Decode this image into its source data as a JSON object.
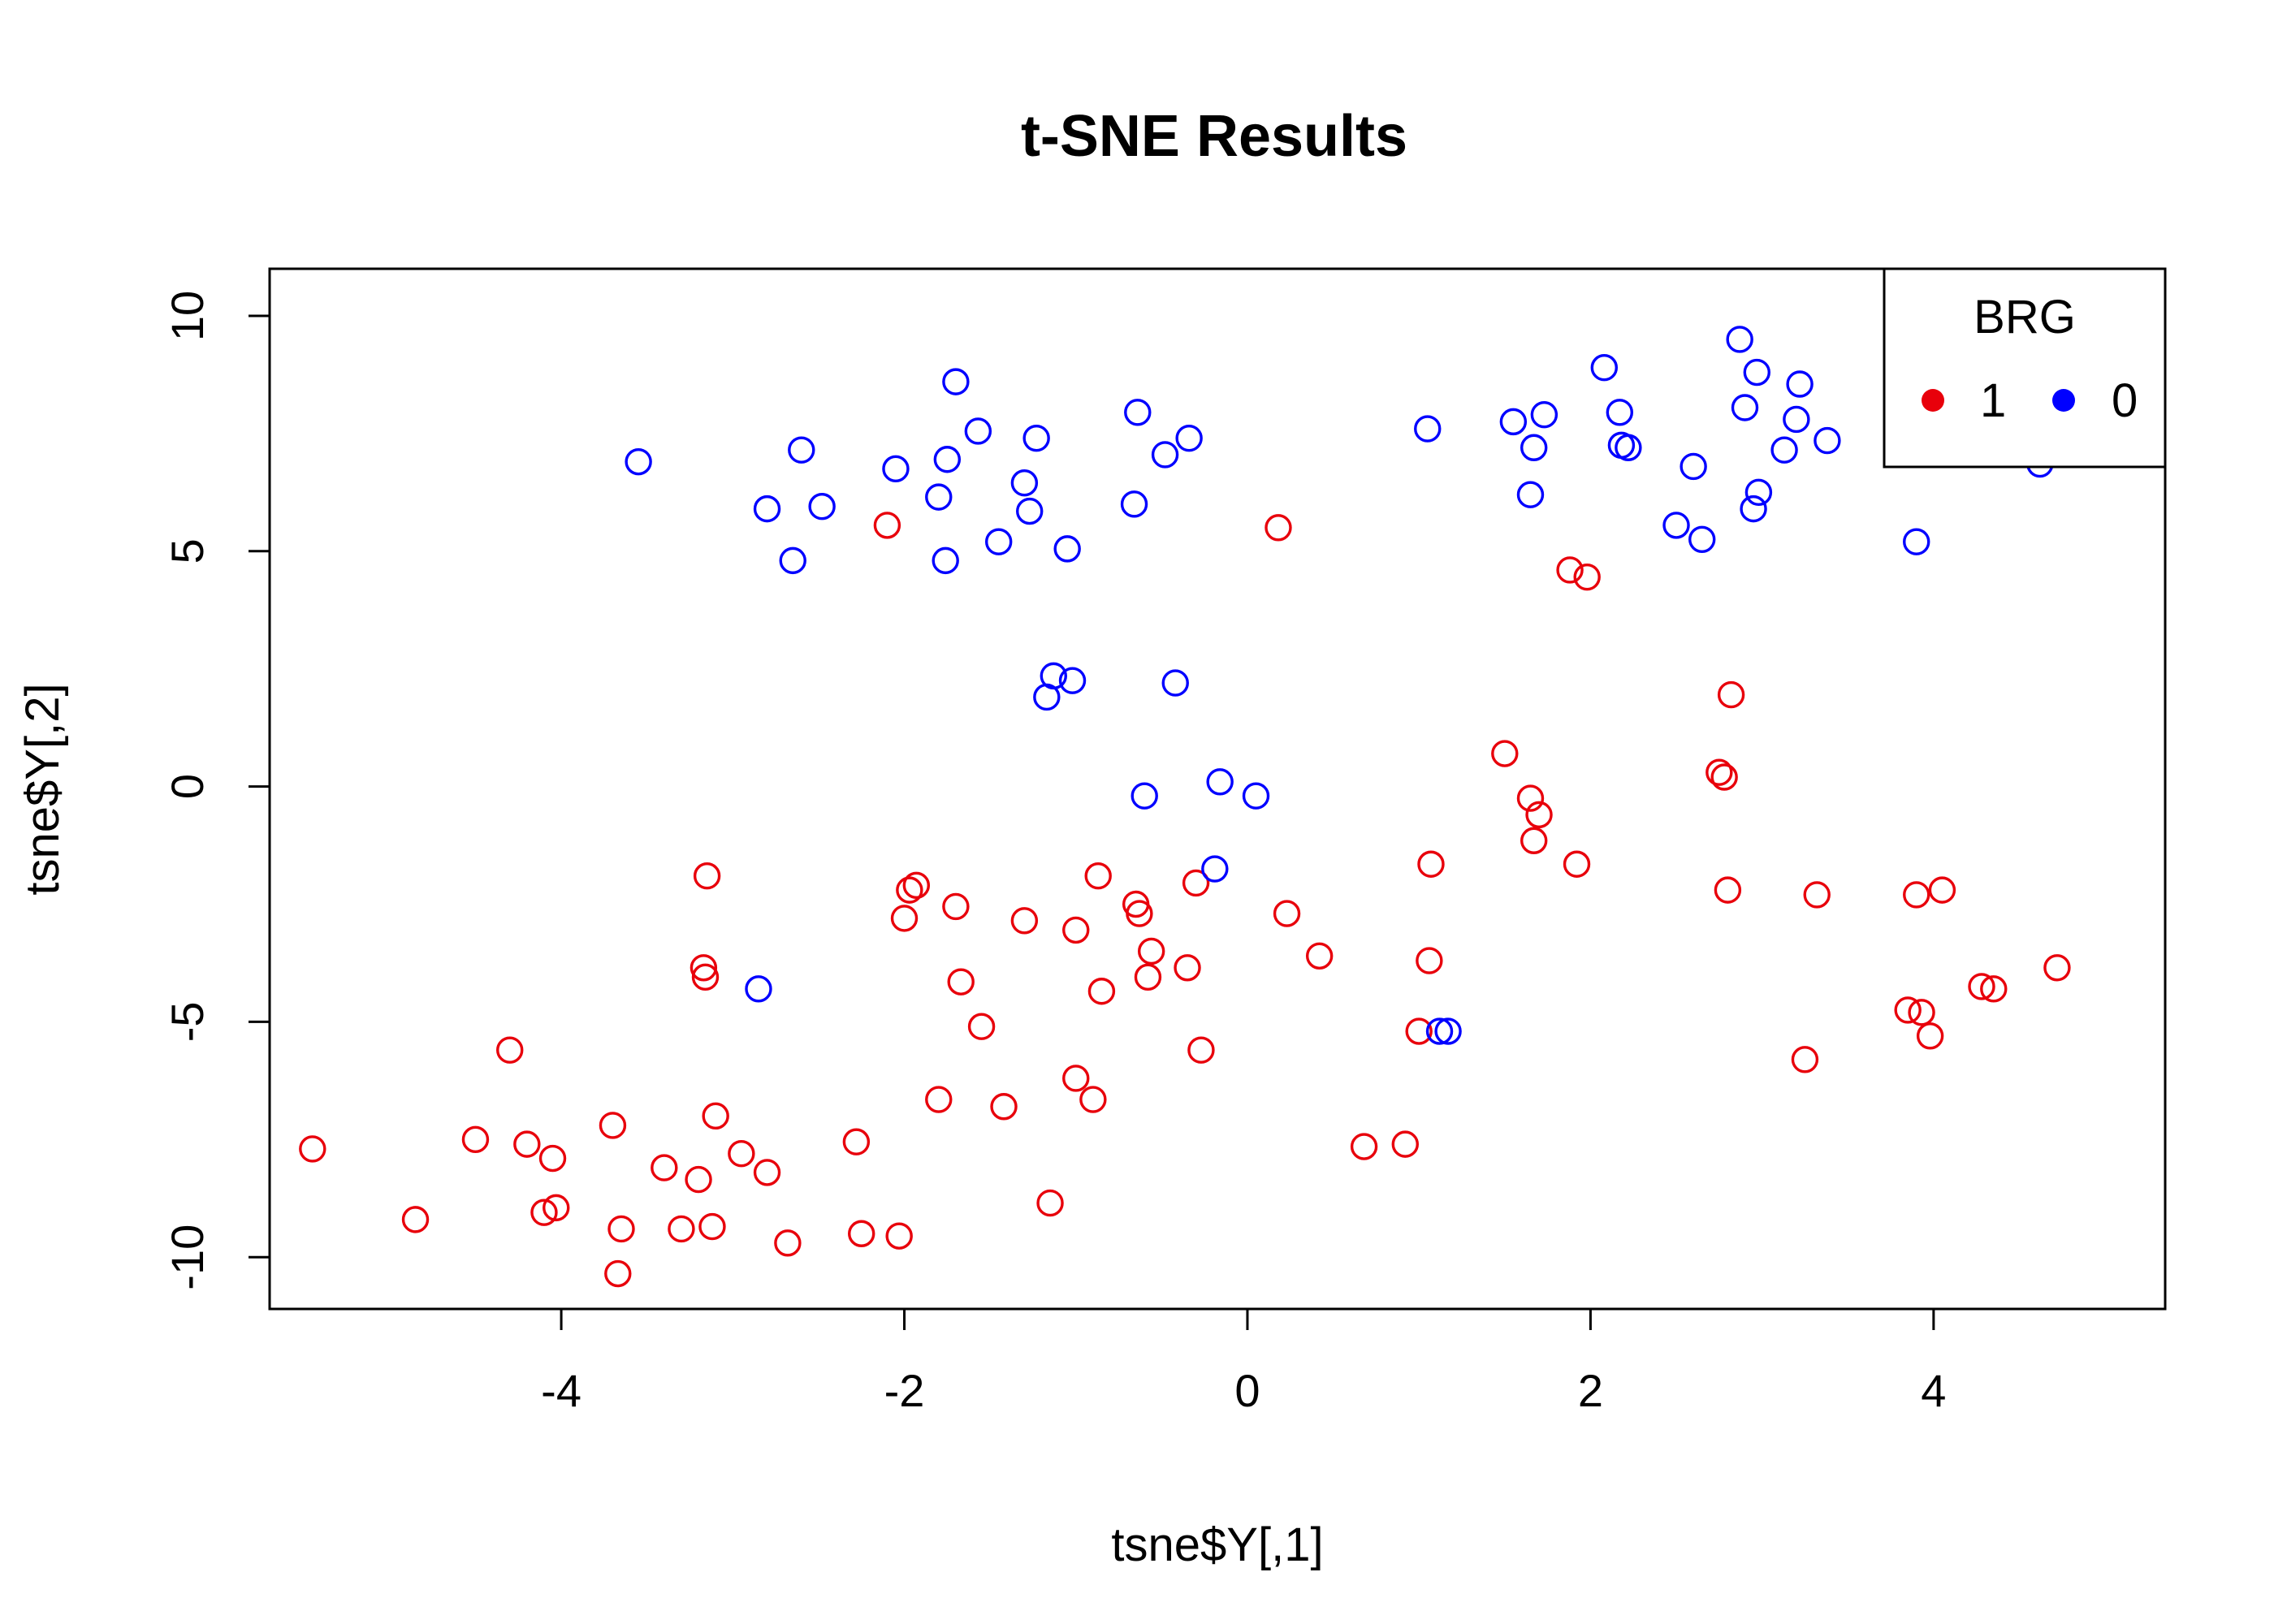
{
  "chart_data": {
    "type": "scatter",
    "title": "t-SNE Results",
    "xlabel": "tsne$Y[,1]",
    "ylabel": "tsne$Y[,2]",
    "xlim": [
      -5.7,
      5.35
    ],
    "ylim": [
      -11.1,
      11.0
    ],
    "x_ticks": [
      -4,
      -2,
      0,
      2,
      4
    ],
    "y_ticks": [
      -10,
      -5,
      0,
      5,
      10
    ],
    "x_tick_labels": [
      "-4",
      "-2",
      "0",
      "2",
      "4"
    ],
    "y_tick_labels": [
      "-10",
      "-5",
      "0",
      "5",
      "10"
    ],
    "grid": false,
    "legend": {
      "title": "BRG",
      "position": "top-right",
      "entries": [
        {
          "label": "1",
          "color": "#e8000b"
        },
        {
          "label": "0",
          "color": "#0000ff"
        }
      ]
    },
    "series": [
      {
        "name": "1",
        "color": "#e8000b",
        "marker": "open-circle",
        "points": [
          [
            -5.45,
            -7.7
          ],
          [
            -4.85,
            -9.2
          ],
          [
            -4.5,
            -7.5
          ],
          [
            -4.3,
            -5.6
          ],
          [
            -4.2,
            -7.6
          ],
          [
            -4.1,
            -9.05
          ],
          [
            -4.05,
            -7.9
          ],
          [
            -4.03,
            -8.95
          ],
          [
            -3.7,
            -7.2
          ],
          [
            -3.67,
            -10.35
          ],
          [
            -3.65,
            -9.4
          ],
          [
            -3.4,
            -8.1
          ],
          [
            -3.3,
            -9.4
          ],
          [
            -3.2,
            -8.35
          ],
          [
            -3.17,
            -3.85
          ],
          [
            -3.16,
            -4.05
          ],
          [
            -3.15,
            -1.9
          ],
          [
            -3.12,
            -9.35
          ],
          [
            -3.1,
            -7.0
          ],
          [
            -2.95,
            -7.8
          ],
          [
            -2.8,
            -8.2
          ],
          [
            -2.68,
            -9.7
          ],
          [
            -2.1,
            5.55
          ],
          [
            -2.28,
            -7.55
          ],
          [
            -2.25,
            -9.5
          ],
          [
            -2.03,
            -9.55
          ],
          [
            -2.0,
            -2.8
          ],
          [
            -1.97,
            -2.2
          ],
          [
            -1.93,
            -2.1
          ],
          [
            -1.8,
            -6.65
          ],
          [
            -1.7,
            -2.55
          ],
          [
            -1.67,
            -4.15
          ],
          [
            -1.55,
            -5.1
          ],
          [
            -1.42,
            -6.8
          ],
          [
            -1.3,
            -2.85
          ],
          [
            -1.0,
            -3.05
          ],
          [
            -1.0,
            -6.2
          ],
          [
            -1.15,
            -8.85
          ],
          [
            -0.9,
            -6.65
          ],
          [
            -0.87,
            -1.9
          ],
          [
            -0.85,
            -4.35
          ],
          [
            -0.65,
            -2.5
          ],
          [
            -0.63,
            -2.7
          ],
          [
            -0.58,
            -4.05
          ],
          [
            -0.56,
            -3.5
          ],
          [
            -0.35,
            -3.85
          ],
          [
            -0.3,
            -2.05
          ],
          [
            -0.27,
            -5.6
          ],
          [
            0.18,
            5.5
          ],
          [
            0.23,
            -2.7
          ],
          [
            0.42,
            -3.6
          ],
          [
            0.68,
            -7.65
          ],
          [
            0.92,
            -7.6
          ],
          [
            1.0,
            -5.2
          ],
          [
            1.06,
            -3.7
          ],
          [
            1.07,
            -1.65
          ],
          [
            1.5,
            0.7
          ],
          [
            1.65,
            -0.25
          ],
          [
            1.67,
            -1.15
          ],
          [
            1.7,
            -0.6
          ],
          [
            1.88,
            4.6
          ],
          [
            1.92,
            -1.65
          ],
          [
            1.98,
            4.45
          ],
          [
            2.75,
            0.3
          ],
          [
            2.78,
            0.2
          ],
          [
            2.8,
            -2.2
          ],
          [
            2.82,
            1.95
          ],
          [
            3.25,
            -5.8
          ],
          [
            3.32,
            -2.3
          ],
          [
            3.85,
            -4.75
          ],
          [
            3.9,
            -2.3
          ],
          [
            3.93,
            -4.8
          ],
          [
            3.98,
            -5.3
          ],
          [
            4.05,
            -2.2
          ],
          [
            4.28,
            -4.25
          ],
          [
            4.35,
            -4.3
          ],
          [
            4.72,
            -3.85
          ]
        ]
      },
      {
        "name": "0",
        "color": "#0000ff",
        "marker": "open-circle",
        "points": [
          [
            -3.55,
            6.9
          ],
          [
            -2.8,
            5.9
          ],
          [
            -2.65,
            4.8
          ],
          [
            -2.6,
            7.15
          ],
          [
            -2.48,
            5.95
          ],
          [
            -2.05,
            6.75
          ],
          [
            -1.8,
            6.15
          ],
          [
            -1.76,
            4.8
          ],
          [
            -1.75,
            6.95
          ],
          [
            -1.7,
            8.6
          ],
          [
            -1.57,
            7.55
          ],
          [
            -1.45,
            5.2
          ],
          [
            -1.3,
            6.45
          ],
          [
            -1.27,
            5.85
          ],
          [
            -1.23,
            7.4
          ],
          [
            -1.05,
            5.05
          ],
          [
            -1.17,
            1.9
          ],
          [
            -1.13,
            2.35
          ],
          [
            -1.02,
            2.25
          ],
          [
            -2.85,
            -4.3
          ],
          [
            -0.66,
            6.0
          ],
          [
            -0.64,
            7.95
          ],
          [
            -0.6,
            -0.2
          ],
          [
            -0.48,
            7.05
          ],
          [
            -0.42,
            2.2
          ],
          [
            -0.34,
            7.4
          ],
          [
            -0.16,
            0.1
          ],
          [
            -0.19,
            -1.75
          ],
          [
            0.05,
            -0.2
          ],
          [
            1.05,
            7.6
          ],
          [
            1.12,
            -5.2
          ],
          [
            1.17,
            -5.2
          ],
          [
            1.55,
            7.75
          ],
          [
            1.65,
            6.2
          ],
          [
            1.67,
            7.2
          ],
          [
            1.73,
            7.9
          ],
          [
            2.08,
            8.9
          ],
          [
            2.17,
            7.95
          ],
          [
            2.18,
            7.25
          ],
          [
            2.22,
            7.2
          ],
          [
            2.5,
            5.55
          ],
          [
            2.6,
            6.8
          ],
          [
            2.65,
            5.25
          ],
          [
            2.87,
            9.5
          ],
          [
            2.9,
            8.05
          ],
          [
            2.95,
            5.9
          ],
          [
            2.97,
            8.8
          ],
          [
            2.98,
            6.25
          ],
          [
            3.13,
            7.15
          ],
          [
            3.2,
            7.8
          ],
          [
            3.22,
            8.55
          ],
          [
            3.38,
            7.35
          ],
          [
            3.9,
            5.2
          ],
          [
            4.62,
            6.85
          ]
        ]
      }
    ]
  }
}
